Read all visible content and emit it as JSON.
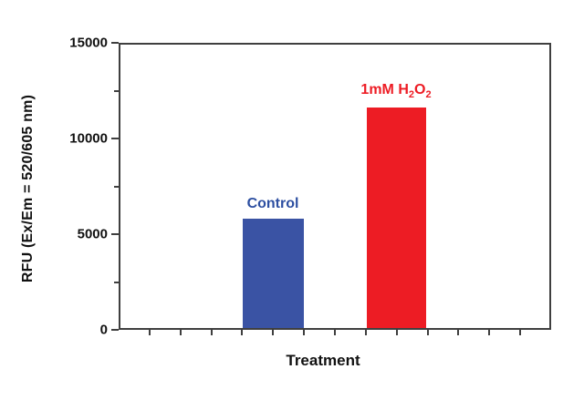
{
  "chart_data": {
    "type": "bar",
    "title": "",
    "xlabel": "Treatment",
    "ylabel": "RFU (Ex/Em = 520/605 nm)",
    "categories": [
      "Control",
      "1mM H2O2"
    ],
    "values": [
      5700,
      11500
    ],
    "bar_colors": [
      "#3a53a4",
      "#ed1c24"
    ],
    "label_colors": [
      "#2d4fa1",
      "#ed1c24"
    ],
    "ylim": [
      0,
      15000
    ],
    "ytick_values": [
      0,
      5000,
      10000,
      15000
    ],
    "ytick_labels": [
      "0",
      "5000",
      "10000",
      "15000"
    ],
    "ytick_minor_values": [
      2500,
      7500,
      12500
    ],
    "xtick_minor_count": 13,
    "grid": "off",
    "legend": "none",
    "frame": "full-box",
    "frame_color": "#3f3f3f",
    "bar_label_control": "Control",
    "bar_label_h2o2_parts": {
      "p1": "1mM H",
      "s1": "2",
      "p2": "O",
      "s2": "2"
    }
  }
}
